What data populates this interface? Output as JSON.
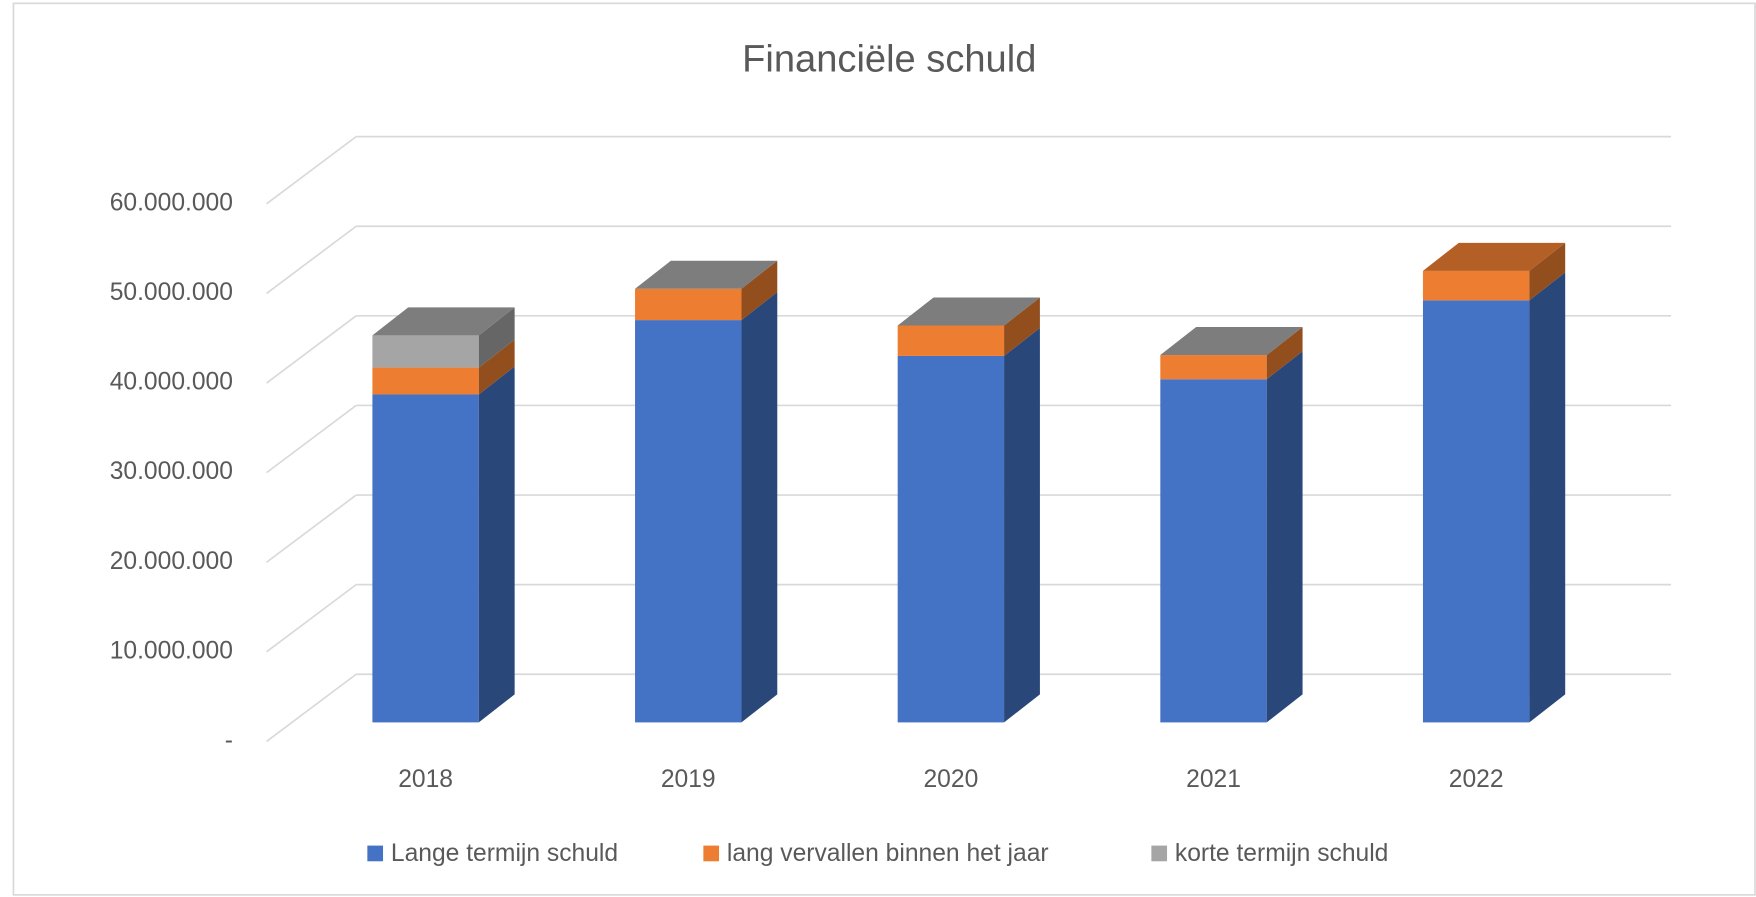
{
  "chart_data": {
    "type": "bar3d_stacked",
    "title": "Financiële schuld",
    "categories": [
      "2018",
      "2019",
      "2020",
      "2021",
      "2022"
    ],
    "series": [
      {
        "name": "Lange termijn schuld",
        "color": "#4472c4",
        "values": [
          36600000,
          44900000,
          40900000,
          38300000,
          47100000
        ]
      },
      {
        "name": "lang vervallen binnen het jaar",
        "color": "#ed7d31",
        "values": [
          3000000,
          3500000,
          3400000,
          2700000,
          3300000
        ]
      },
      {
        "name": "korte termijn schuld",
        "color": "#a5a5a5",
        "values": [
          3600000,
          0,
          0,
          0,
          null
        ]
      }
    ],
    "ylim": [
      0,
      60000000
    ],
    "yticks": [
      {
        "value": 0,
        "label": "-"
      },
      {
        "value": 10000000,
        "label": "10.000.000"
      },
      {
        "value": 20000000,
        "label": "20.000.000"
      },
      {
        "value": 30000000,
        "label": "30.000.000"
      },
      {
        "value": 40000000,
        "label": "40.000.000"
      },
      {
        "value": 50000000,
        "label": "50.000.000"
      },
      {
        "value": 60000000,
        "label": "60.000.000"
      }
    ],
    "grid": true,
    "legend": "bottom"
  }
}
